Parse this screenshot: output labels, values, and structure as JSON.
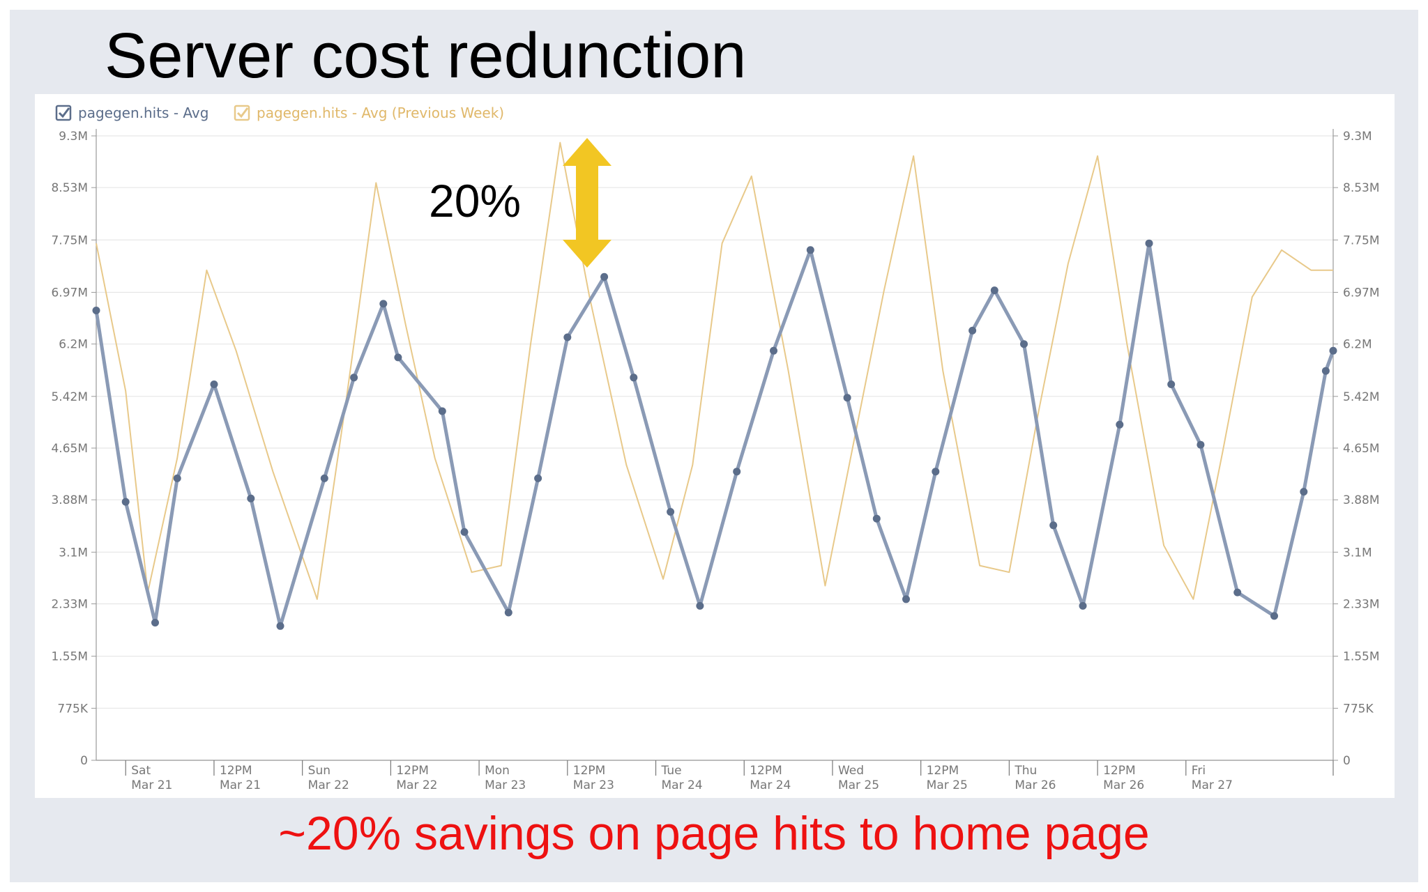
{
  "slide": {
    "title": "Server cost redunction",
    "caption": "~20% savings on page hits to home page",
    "annotation": "20%"
  },
  "colors": {
    "current": "#5b6d8a",
    "current_line": "#8a9ab5",
    "previous": "#e8c98a",
    "arrow": "#f2c623",
    "caption": "#ee1111",
    "slide_bg": "#e6e9ef"
  },
  "chart_data": {
    "type": "line",
    "title": "",
    "xlabel": "",
    "ylabel": "",
    "ylim": [
      0,
      9300000
    ],
    "xlim": [
      "Mar 20 20:00",
      "Mar 27 20:00"
    ],
    "grid": true,
    "legend_position": "top-left",
    "y_ticks": [
      {
        "value": 0,
        "label": "0"
      },
      {
        "value": 775000,
        "label": "775K"
      },
      {
        "value": 1550000,
        "label": "1.55M"
      },
      {
        "value": 2330000,
        "label": "2.33M"
      },
      {
        "value": 3100000,
        "label": "3.1M"
      },
      {
        "value": 3880000,
        "label": "3.88M"
      },
      {
        "value": 4650000,
        "label": "4.65M"
      },
      {
        "value": 5420000,
        "label": "5.42M"
      },
      {
        "value": 6200000,
        "label": "6.2M"
      },
      {
        "value": 6970000,
        "label": "6.97M"
      },
      {
        "value": 7750000,
        "label": "7.75M"
      },
      {
        "value": 8530000,
        "label": "8.53M"
      },
      {
        "value": 9300000,
        "label": "9.3M"
      }
    ],
    "x_ticks": [
      {
        "value": "Mar 21 00:00",
        "line1": "Sat",
        "line2": "Mar 21"
      },
      {
        "value": "Mar 21 12:00",
        "line1": "12PM",
        "line2": "Mar 21"
      },
      {
        "value": "Mar 22 00:00",
        "line1": "Sun",
        "line2": "Mar 22"
      },
      {
        "value": "Mar 22 12:00",
        "line1": "12PM",
        "line2": "Mar 22"
      },
      {
        "value": "Mar 23 00:00",
        "line1": "Mon",
        "line2": "Mar 23"
      },
      {
        "value": "Mar 23 12:00",
        "line1": "12PM",
        "line2": "Mar 23"
      },
      {
        "value": "Mar 24 00:00",
        "line1": "Tue",
        "line2": "Mar 24"
      },
      {
        "value": "Mar 24 12:00",
        "line1": "12PM",
        "line2": "Mar 24"
      },
      {
        "value": "Mar 25 00:00",
        "line1": "Wed",
        "line2": "Mar 25"
      },
      {
        "value": "Mar 25 12:00",
        "line1": "12PM",
        "line2": "Mar 25"
      },
      {
        "value": "Mar 26 00:00",
        "line1": "Thu",
        "line2": "Mar 26"
      },
      {
        "value": "Mar 26 12:00",
        "line1": "12PM",
        "line2": "Mar 26"
      },
      {
        "value": "Mar 27 00:00",
        "line1": "Fri",
        "line2": "Mar 27"
      }
    ],
    "series": [
      {
        "name": "pagegen.hits - Avg",
        "x": [
          "Mar 20 20:00",
          "Mar 21 00:00",
          "Mar 21 04:00",
          "Mar 21 07:00",
          "Mar 21 12:00",
          "Mar 21 17:00",
          "Mar 21 21:00",
          "Mar 22 03:00",
          "Mar 22 07:00",
          "Mar 22 11:00",
          "Mar 22 13:00",
          "Mar 22 19:00",
          "Mar 22 22:00",
          "Mar 23 04:00",
          "Mar 23 08:00",
          "Mar 23 12:00",
          "Mar 23 17:00",
          "Mar 23 21:00",
          "Mar 24 02:00",
          "Mar 24 06:00",
          "Mar 24 11:00",
          "Mar 24 16:00",
          "Mar 24 21:00",
          "Mar 25 02:00",
          "Mar 25 06:00",
          "Mar 25 10:00",
          "Mar 25 14:00",
          "Mar 25 19:00",
          "Mar 25 22:00",
          "Mar 26 02:00",
          "Mar 26 06:00",
          "Mar 26 10:00",
          "Mar 26 15:00",
          "Mar 26 19:00",
          "Mar 26 22:00",
          "Mar 27 02:00",
          "Mar 27 07:00",
          "Mar 27 12:00",
          "Mar 27 16:00",
          "Mar 27 19:00",
          "Mar 27 20:00"
        ],
        "values": [
          6700000,
          3850000,
          2050000,
          4200000,
          5600000,
          3900000,
          2000000,
          4200000,
          5700000,
          6800000,
          6000000,
          5200000,
          3400000,
          2200000,
          4200000,
          6300000,
          7200000,
          5700000,
          3700000,
          2300000,
          4300000,
          6100000,
          7600000,
          5400000,
          3600000,
          2400000,
          4300000,
          6400000,
          7000000,
          6200000,
          3500000,
          2300000,
          5000000,
          7700000,
          5600000,
          4700000,
          2500000,
          2150000,
          4000000,
          5800000,
          6100000
        ]
      },
      {
        "name": "pagegen.hits - Avg (Previous Week)",
        "x": [
          "Mar 20 20:00",
          "Mar 21 00:00",
          "Mar 21 03:00",
          "Mar 21 07:00",
          "Mar 21 11:00",
          "Mar 21 15:00",
          "Mar 21 20:00",
          "Mar 22 02:00",
          "Mar 22 06:00",
          "Mar 22 10:00",
          "Mar 22 14:00",
          "Mar 22 18:00",
          "Mar 22 23:00",
          "Mar 23 03:00",
          "Mar 23 07:00",
          "Mar 23 11:00",
          "Mar 23 15:00",
          "Mar 23 20:00",
          "Mar 24 01:00",
          "Mar 24 05:00",
          "Mar 24 09:00",
          "Mar 24 13:00",
          "Mar 24 18:00",
          "Mar 24 23:00",
          "Mar 25 03:00",
          "Mar 25 07:00",
          "Mar 25 11:00",
          "Mar 25 15:00",
          "Mar 25 20:00",
          "Mar 26 00:00",
          "Mar 26 04:00",
          "Mar 26 08:00",
          "Mar 26 12:00",
          "Mar 26 16:00",
          "Mar 26 21:00",
          "Mar 27 01:00",
          "Mar 27 05:00",
          "Mar 27 09:00",
          "Mar 27 13:00",
          "Mar 27 17:00",
          "Mar 27 20:00"
        ],
        "values": [
          7700000,
          5500000,
          2500000,
          4500000,
          7300000,
          6100000,
          4300000,
          2400000,
          5400000,
          8600000,
          6500000,
          4500000,
          2800000,
          2900000,
          6200000,
          9200000,
          6900000,
          4400000,
          2700000,
          4400000,
          7700000,
          8700000,
          5800000,
          2600000,
          4800000,
          7000000,
          9000000,
          5800000,
          2900000,
          2800000,
          5200000,
          7400000,
          9000000,
          6200000,
          3200000,
          2400000,
          4600000,
          6900000,
          7600000,
          7300000,
          7300000
        ]
      }
    ]
  }
}
